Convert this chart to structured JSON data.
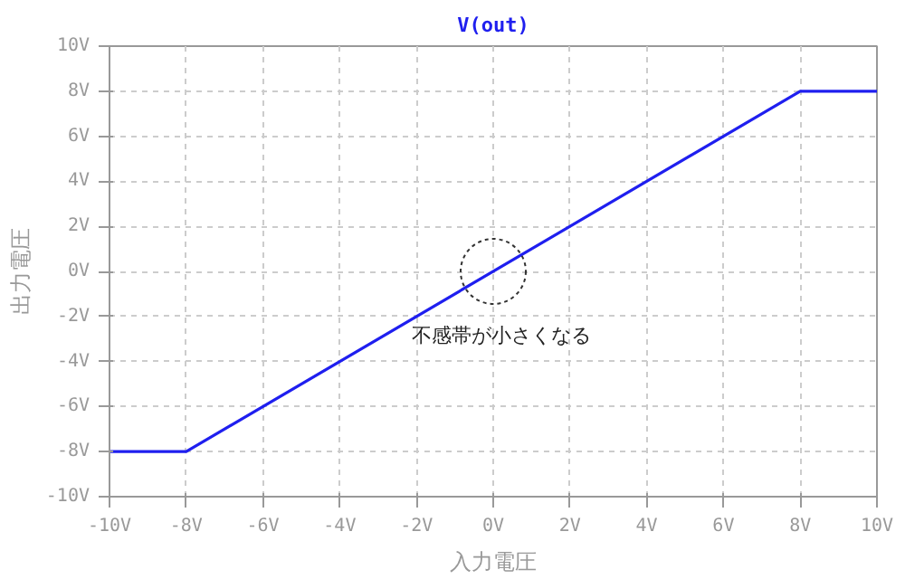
{
  "chart_data": {
    "type": "line",
    "title": "V(out)",
    "xlabel": "入力電圧",
    "ylabel": "出力電圧",
    "x": [
      -10,
      -8,
      8,
      10
    ],
    "series": [
      {
        "color": "#1f1fef",
        "values": [
          -8,
          -8,
          8,
          8
        ]
      }
    ],
    "xlim": [
      -10,
      10
    ],
    "ylim": [
      -10,
      10
    ],
    "xticks": [
      {
        "value": -10,
        "label": "-10V"
      },
      {
        "value": -8,
        "label": "-8V"
      },
      {
        "value": -6,
        "label": "-6V"
      },
      {
        "value": -4,
        "label": "-4V"
      },
      {
        "value": -2,
        "label": "-2V"
      },
      {
        "value": 0,
        "label": "0V"
      },
      {
        "value": 2,
        "label": "2V"
      },
      {
        "value": 4,
        "label": "4V"
      },
      {
        "value": 6,
        "label": "6V"
      },
      {
        "value": 8,
        "label": "8V"
      },
      {
        "value": 10,
        "label": "10V"
      }
    ],
    "yticks": [
      {
        "value": -10,
        "label": "-10V"
      },
      {
        "value": -8,
        "label": "-8V"
      },
      {
        "value": -6,
        "label": "-6V"
      },
      {
        "value": -4,
        "label": "-4V"
      },
      {
        "value": -2,
        "label": "-2V"
      },
      {
        "value": 0,
        "label": "0V"
      },
      {
        "value": 2,
        "label": "2V"
      },
      {
        "value": 4,
        "label": "4V"
      },
      {
        "value": 6,
        "label": "6V"
      },
      {
        "value": 8,
        "label": "8V"
      },
      {
        "value": 10,
        "label": "10V"
      }
    ],
    "annotations": [
      {
        "text": "不感帯が小さくなる",
        "x": 0,
        "y": 0
      }
    ],
    "grid": true,
    "line_style": "solid"
  }
}
